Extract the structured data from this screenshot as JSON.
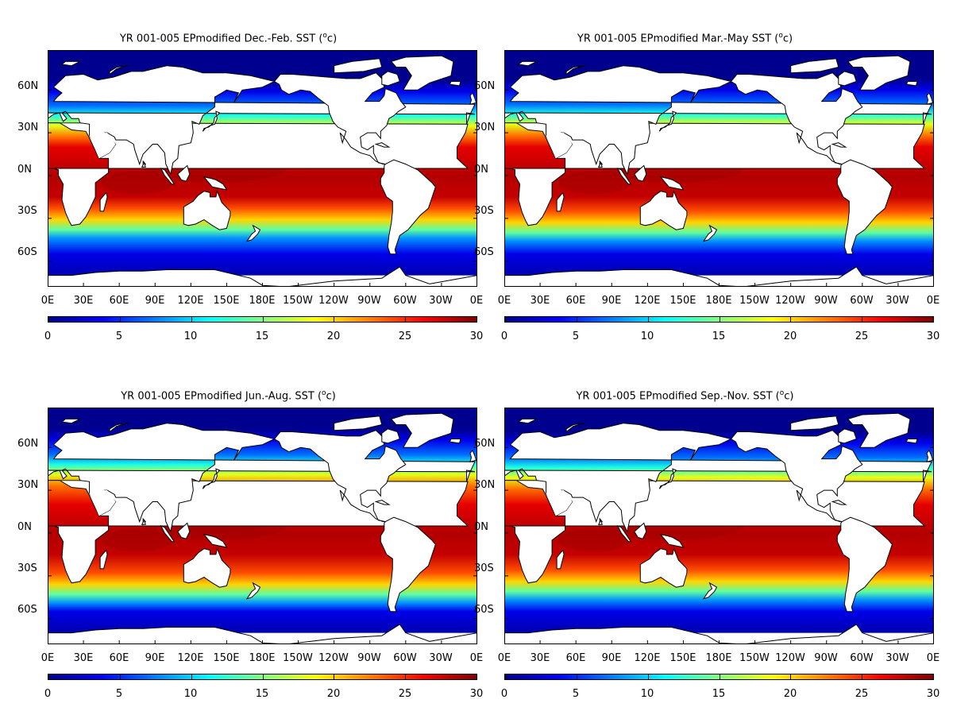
{
  "panels": [
    {
      "title_prefix": "YR 001-005 EPmodified Dec.-Feb. SST (",
      "title_sup": "o",
      "title_suffix": "c)",
      "season": "DJF"
    },
    {
      "title_prefix": "YR 001-005 EPmodified Mar.-May SST (",
      "title_sup": "o",
      "title_suffix": "c)",
      "season": "MAM"
    },
    {
      "title_prefix": "YR 001-005 EPmodified Jun.-Aug. SST (",
      "title_sup": "o",
      "title_suffix": "c)",
      "season": "JJA"
    },
    {
      "title_prefix": "YR 001-005 EPmodified Sep.-Nov. SST (",
      "title_sup": "o",
      "title_suffix": "c)",
      "season": "SON"
    }
  ],
  "lat_labels": [
    "60N",
    "30N",
    "0N",
    "30S",
    "60S"
  ],
  "lon_labels": [
    "0E",
    "30E",
    "60E",
    "90E",
    "120E",
    "150E",
    "180E",
    "150W",
    "120W",
    "90W",
    "60W",
    "30W",
    "0E"
  ],
  "colorbar": {
    "ticks": [
      "0",
      "5",
      "10",
      "15",
      "20",
      "25",
      "30"
    ],
    "colors": [
      "#00008f",
      "#0000ff",
      "#0080ff",
      "#00ffff",
      "#80ff80",
      "#ffff00",
      "#ff8000",
      "#ff0000",
      "#800000"
    ]
  },
  "map": {
    "land_color": "#ffffff",
    "coast_color": "#000000",
    "missing_color": "#ffffff",
    "lat_range": [
      -78,
      88
    ],
    "lon_range": [
      0,
      360
    ]
  }
}
